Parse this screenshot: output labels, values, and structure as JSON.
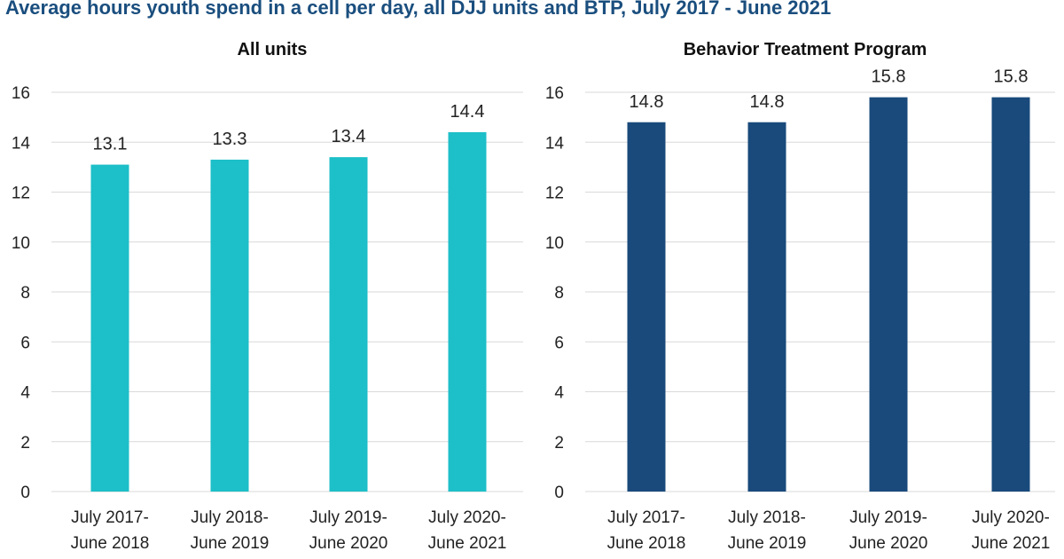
{
  "title": "Average hours youth spend in a cell per day, all DJJ units and BTP, July 2017 - June 2021",
  "chart_data": [
    {
      "type": "bar",
      "title": "All units",
      "categories": [
        [
          "July 2017-",
          "June 2018"
        ],
        [
          "July 2018-",
          "June 2019"
        ],
        [
          "July 2019-",
          "June 2020"
        ],
        [
          "July 2020-",
          "June 2021"
        ]
      ],
      "values": [
        13.1,
        13.3,
        13.4,
        14.4
      ],
      "data_labels": [
        "13.1",
        "13.3",
        "13.4",
        "14.4"
      ],
      "ylim": [
        0,
        16
      ],
      "yticks": [
        0,
        2,
        4,
        6,
        8,
        10,
        12,
        14,
        16
      ],
      "grid": true,
      "color": "#1dbfc8"
    },
    {
      "type": "bar",
      "title": "Behavior Treatment Program",
      "categories": [
        [
          "July 2017-",
          "June 2018"
        ],
        [
          "July 2018-",
          "June 2019"
        ],
        [
          "July 2019-",
          "June 2020"
        ],
        [
          "July 2020-",
          "June 2021"
        ]
      ],
      "values": [
        14.8,
        14.8,
        15.8,
        15.8
      ],
      "data_labels": [
        "14.8",
        "14.8",
        "15.8",
        "15.8"
      ],
      "ylim": [
        0,
        16
      ],
      "yticks": [
        0,
        2,
        4,
        6,
        8,
        10,
        12,
        14,
        16
      ],
      "grid": true,
      "color": "#194a7b"
    }
  ]
}
